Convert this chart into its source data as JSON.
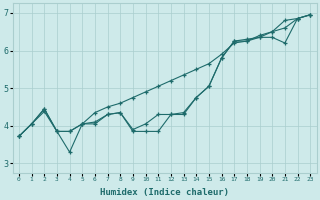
{
  "xlabel": "Humidex (Indice chaleur)",
  "background_color": "#ceeaea",
  "line_color": "#1e6b6b",
  "grid_color": "#aacece",
  "xlim": [
    -0.5,
    23.5
  ],
  "ylim": [
    2.75,
    7.25
  ],
  "xticks": [
    0,
    1,
    2,
    3,
    4,
    5,
    6,
    7,
    8,
    9,
    10,
    11,
    12,
    13,
    14,
    15,
    16,
    17,
    18,
    19,
    20,
    21,
    22,
    23
  ],
  "yticks": [
    3,
    4,
    5,
    6,
    7
  ],
  "x": [
    0,
    1,
    2,
    3,
    4,
    5,
    6,
    7,
    8,
    9,
    10,
    11,
    12,
    13,
    14,
    15,
    16,
    17,
    18,
    19,
    20,
    21,
    22,
    23
  ],
  "line_smooth": [
    3.72,
    4.05,
    4.38,
    3.85,
    3.85,
    4.05,
    4.35,
    4.5,
    4.6,
    4.75,
    4.9,
    5.05,
    5.2,
    5.35,
    5.5,
    5.65,
    5.9,
    6.2,
    6.25,
    6.4,
    6.5,
    6.6,
    6.85,
    6.95
  ],
  "line_mid": [
    3.72,
    4.05,
    4.45,
    3.85,
    3.85,
    4.05,
    4.1,
    4.3,
    4.35,
    3.9,
    4.05,
    4.3,
    4.3,
    4.35,
    4.75,
    5.05,
    5.8,
    6.25,
    6.3,
    6.35,
    6.5,
    6.8,
    6.85,
    6.95
  ],
  "line_low": [
    3.72,
    4.05,
    4.45,
    3.85,
    3.3,
    4.05,
    4.05,
    4.3,
    4.35,
    3.85,
    3.85,
    3.85,
    4.3,
    4.3,
    4.75,
    5.05,
    5.8,
    6.25,
    6.25,
    6.35,
    6.35,
    6.2,
    6.85,
    6.95
  ]
}
